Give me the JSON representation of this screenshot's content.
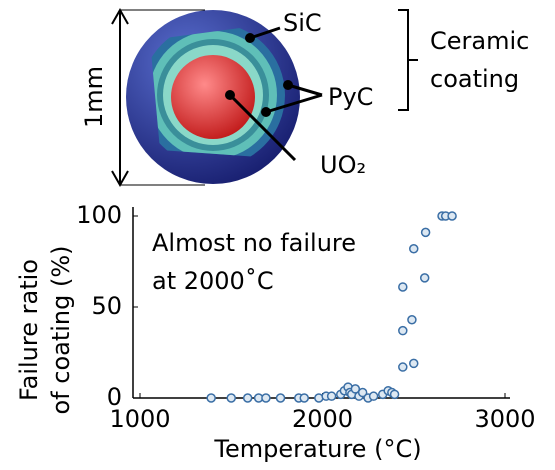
{
  "diagram": {
    "size_label": "1mm",
    "sic_label": "SiC",
    "pyc_label": "PyC",
    "core_label": "UO₂",
    "coating_label": [
      "Ceramic",
      "coating"
    ]
  },
  "chart_data": {
    "type": "scatter",
    "xlabel": "Temperature (°C)",
    "ylabel": [
      "Failure ratio",
      "of coating (%)"
    ],
    "annotation": [
      "Almost no failure",
      "at 2000˚C"
    ],
    "xlim": [
      1000,
      3000
    ],
    "xticks": [
      1000,
      2000,
      3000
    ],
    "ylim": [
      0,
      100
    ],
    "yticks": [
      0,
      50,
      100
    ],
    "color": "#3a6ea5",
    "x": [
      1390,
      1500,
      1590,
      1650,
      1690,
      1770,
      1870,
      1900,
      1980,
      2020,
      2050,
      2100,
      2120,
      2140,
      2150,
      2160,
      2180,
      2200,
      2220,
      2250,
      2280,
      2330,
      2360,
      2380,
      2395,
      2440,
      2440,
      2440,
      2490,
      2500,
      2500,
      2560,
      2565,
      2655,
      2675,
      2710
    ],
    "values": [
      0,
      0,
      0,
      0,
      0,
      0,
      0,
      0,
      0,
      1,
      1,
      2,
      4,
      6,
      3,
      2,
      5,
      1,
      3,
      0,
      1,
      2,
      4,
      3,
      2,
      17,
      37,
      61,
      43,
      19,
      82,
      66,
      91,
      100,
      100,
      100
    ]
  }
}
